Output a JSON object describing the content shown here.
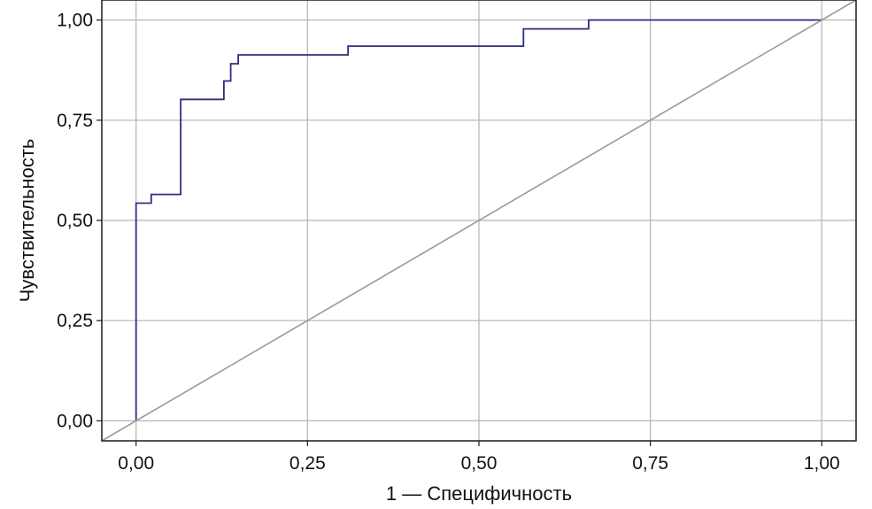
{
  "chart_data": {
    "type": "line",
    "xlabel": "1 — Специфичность",
    "ylabel": "Чувствительность",
    "xlim": [
      -0.05,
      1.05
    ],
    "ylim": [
      -0.05,
      1.05
    ],
    "x_ticks": [
      0,
      0.25,
      0.5,
      0.75,
      1.0
    ],
    "y_ticks": [
      0,
      0.25,
      0.5,
      0.75,
      1.0
    ],
    "x_tick_labels": [
      "0,00",
      "0,25",
      "0,50",
      "0,75",
      "1,00"
    ],
    "y_tick_labels": [
      "0,00",
      "0,25",
      "0,50",
      "0,75",
      "1,00"
    ],
    "grid": true,
    "series": [
      {
        "color": "#2e2e80",
        "style": "step",
        "x": [
          0,
          0,
          0.022,
          0.022,
          0.065,
          0.065,
          0.128,
          0.128,
          0.138,
          0.138,
          0.149,
          0.149,
          0.309,
          0.309,
          0.565,
          0.565,
          0.66,
          0.66,
          1.0
        ],
        "y": [
          0,
          0.543,
          0.543,
          0.565,
          0.565,
          0.802,
          0.802,
          0.848,
          0.848,
          0.891,
          0.891,
          0.913,
          0.913,
          0.935,
          0.935,
          0.978,
          0.978,
          1.0,
          1.0
        ]
      },
      {
        "color": "#9a9a9a",
        "style": "reference",
        "x": [
          -0.05,
          1.05
        ],
        "y": [
          -0.05,
          1.05
        ]
      }
    ]
  }
}
